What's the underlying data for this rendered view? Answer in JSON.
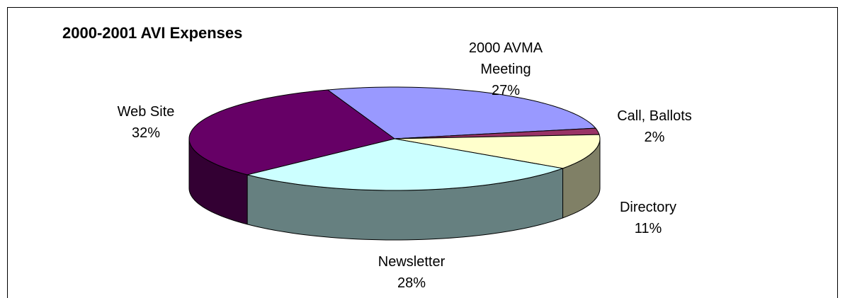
{
  "chart_data": {
    "type": "pie3d",
    "title": "2000-2001 AVI Expenses",
    "categories": [
      "2000 AVMA Meeting",
      "Call, Ballots",
      "Directory",
      "Newsletter",
      "Web Site"
    ],
    "values": [
      27,
      2,
      11,
      28,
      32
    ],
    "value_labels": [
      "27%",
      "2%",
      "11%",
      "28%",
      "32%"
    ],
    "colors": [
      "#9999ff",
      "#993366",
      "#ffffcc",
      "#ccffff",
      "#660066"
    ]
  }
}
